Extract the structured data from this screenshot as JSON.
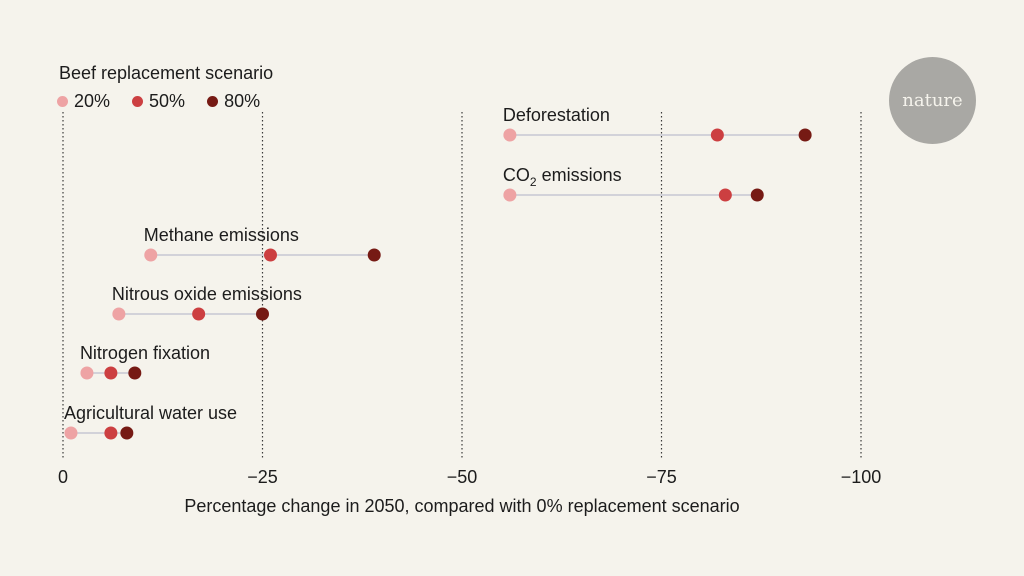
{
  "chart_data": {
    "type": "dumbbell",
    "title": "",
    "xlabel": "Percentage change in 2050, compared with 0% replacement scenario",
    "ylabel": "",
    "xlim": [
      0,
      -100
    ],
    "xticks": [
      0,
      -25,
      -50,
      -75,
      -100
    ],
    "xtick_labels": [
      "0",
      "−25",
      "−50",
      "−75",
      "−100"
    ],
    "grid": "vertical dotted",
    "legend": {
      "title": "Beef replacement scenario",
      "placement": "top-left",
      "entries": [
        "20%",
        "50%",
        "80%"
      ]
    },
    "series_colors": {
      "20%": "#eea3a4",
      "50%": "#cc3f41",
      "80%": "#761a14"
    },
    "categories": [
      "Deforestation",
      "CO2 emissions",
      "Methane emissions",
      "Nitrous oxide emissions",
      "Nitrogen fixation",
      "Agricultural water use"
    ],
    "series": [
      {
        "name": "20%",
        "values": [
          -56,
          -56,
          -11,
          -7,
          -3,
          -1
        ]
      },
      {
        "name": "50%",
        "values": [
          -82,
          -83,
          -26,
          -17,
          -6,
          -6
        ]
      },
      {
        "name": "80%",
        "values": [
          -93,
          -87,
          -39,
          -25,
          -9,
          -8
        ]
      }
    ]
  },
  "logo": {
    "text": "nature"
  }
}
